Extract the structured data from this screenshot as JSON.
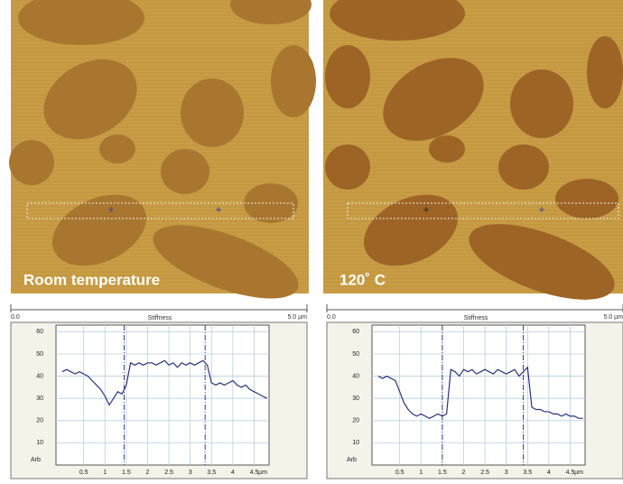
{
  "chart_data": [
    {
      "type": "line",
      "image_label": "Room temperature",
      "scale_start": "0.0",
      "title": "Stiffness",
      "scale_end": "5.0 µm",
      "ylabel": "Arb",
      "xlabel": "µm",
      "color": "#2b3278",
      "grid": true,
      "x": [
        0,
        0.1,
        0.2,
        0.3,
        0.4,
        0.5,
        0.6,
        0.7,
        0.8,
        0.9,
        1,
        1.1,
        1.2,
        1.3,
        1.4,
        1.5,
        1.6,
        1.7,
        1.8,
        1.9,
        2,
        2.1,
        2.2,
        2.3,
        2.4,
        2.5,
        2.6,
        2.7,
        2.8,
        2.9,
        3,
        3.1,
        3.2,
        3.3,
        3.4,
        3.5,
        3.6,
        3.7,
        3.8,
        3.9,
        4,
        4.1,
        4.2,
        4.3,
        4.4,
        4.5,
        4.6,
        4.7,
        4.8
      ],
      "values": [
        42,
        43,
        42,
        41,
        42,
        41,
        40,
        38,
        36,
        34,
        31,
        27,
        30,
        33,
        32,
        36,
        46,
        45,
        46,
        45,
        46,
        46,
        45,
        46,
        47,
        45,
        46,
        44,
        46,
        45,
        46,
        45,
        46,
        47,
        45,
        37,
        36,
        37,
        36,
        37,
        38,
        36,
        35,
        36,
        34,
        33,
        32,
        31,
        30
      ],
      "markers": [
        1.45,
        3.35
      ],
      "xlim": [
        -0.15,
        4.85
      ],
      "xticks": [
        0.5,
        1,
        1.5,
        2,
        2.5,
        3,
        3.5,
        4,
        4.5
      ],
      "ylim": [
        0,
        63
      ],
      "yticks": [
        10,
        20,
        30,
        40,
        50,
        60
      ]
    },
    {
      "type": "line",
      "image_label": "120˚ C",
      "scale_start": "0.0",
      "title": "Stiffness",
      "scale_end": "5.0 µm",
      "ylabel": "Arb",
      "xlabel": "µm",
      "color": "#2b3278",
      "grid": true,
      "x": [
        0,
        0.1,
        0.2,
        0.3,
        0.4,
        0.5,
        0.6,
        0.7,
        0.8,
        0.9,
        1,
        1.1,
        1.2,
        1.3,
        1.4,
        1.5,
        1.6,
        1.7,
        1.8,
        1.9,
        2,
        2.1,
        2.2,
        2.3,
        2.4,
        2.5,
        2.6,
        2.7,
        2.8,
        2.9,
        3,
        3.1,
        3.2,
        3.3,
        3.4,
        3.5,
        3.6,
        3.7,
        3.8,
        3.9,
        4,
        4.1,
        4.2,
        4.3,
        4.4,
        4.5,
        4.6,
        4.7,
        4.8
      ],
      "values": [
        40,
        39,
        40,
        39,
        38,
        33,
        28,
        25,
        23,
        22,
        23,
        22,
        21,
        22,
        23,
        22,
        23,
        43,
        42,
        40,
        43,
        42,
        43,
        41,
        42,
        43,
        42,
        41,
        43,
        42,
        41,
        42,
        43,
        40,
        42,
        44,
        26,
        25,
        25,
        24,
        24,
        23,
        23,
        22,
        23,
        22,
        22,
        21,
        21
      ],
      "markers": [
        1.5,
        3.4
      ],
      "xlim": [
        -0.15,
        4.85
      ],
      "xticks": [
        0.5,
        1,
        1.5,
        2,
        2.5,
        3,
        3.5,
        4,
        4.5
      ],
      "ylim": [
        0,
        63
      ],
      "yticks": [
        10,
        20,
        30,
        40,
        50,
        60
      ]
    }
  ]
}
